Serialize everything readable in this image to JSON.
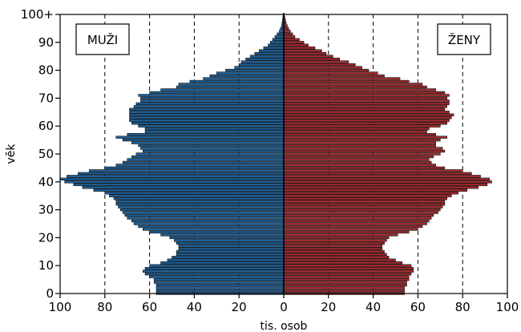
{
  "chart_data": {
    "type": "bar",
    "orientation": "horizontal",
    "subtype": "population-pyramid",
    "title": "",
    "xlabel": "tis. osob",
    "ylabel": "věk",
    "xlim": [
      -100,
      100
    ],
    "ylim": [
      0,
      100
    ],
    "x_ticks": [
      100,
      80,
      60,
      40,
      20,
      0,
      20,
      40,
      60,
      80,
      100
    ],
    "y_ticks": [
      {
        "value": 0,
        "label": "0"
      },
      {
        "value": 10,
        "label": "10"
      },
      {
        "value": 20,
        "label": "20"
      },
      {
        "value": 30,
        "label": "30"
      },
      {
        "value": 40,
        "label": "40"
      },
      {
        "value": 50,
        "label": "50"
      },
      {
        "value": 60,
        "label": "60"
      },
      {
        "value": 70,
        "label": "70"
      },
      {
        "value": 80,
        "label": "80"
      },
      {
        "value": 90,
        "label": "90"
      },
      {
        "value": 100,
        "label": "100+"
      }
    ],
    "grid": "vertical dashed",
    "colors": {
      "male": "#1f5e94",
      "female": "#9c2a2f"
    },
    "panel_labels": {
      "male": "MUŽI",
      "female": "ŽENY"
    },
    "ages": [
      0,
      1,
      2,
      3,
      4,
      5,
      6,
      7,
      8,
      9,
      10,
      11,
      12,
      13,
      14,
      15,
      16,
      17,
      18,
      19,
      20,
      21,
      22,
      23,
      24,
      25,
      26,
      27,
      28,
      29,
      30,
      31,
      32,
      33,
      34,
      35,
      36,
      37,
      38,
      39,
      40,
      41,
      42,
      43,
      44,
      45,
      46,
      47,
      48,
      49,
      50,
      51,
      52,
      53,
      54,
      55,
      56,
      57,
      58,
      59,
      60,
      61,
      62,
      63,
      64,
      65,
      66,
      67,
      68,
      69,
      70,
      71,
      72,
      73,
      74,
      75,
      76,
      77,
      78,
      79,
      80,
      81,
      82,
      83,
      84,
      85,
      86,
      87,
      88,
      89,
      90,
      91,
      92,
      93,
      94,
      95,
      96,
      97,
      98,
      99,
      100
    ],
    "series": [
      {
        "name": "MUŽI",
        "values": [
          57,
          57,
          57,
          57,
          58,
          58,
          60,
          62,
          63,
          62,
          60,
          55,
          52,
          50,
          48,
          48,
          47,
          47,
          48,
          49,
          51,
          55,
          60,
          63,
          65,
          67,
          68,
          70,
          71,
          72,
          73,
          74,
          75,
          75,
          76,
          78,
          80,
          85,
          90,
          94,
          98,
          100,
          97,
          92,
          87,
          80,
          75,
          72,
          70,
          68,
          66,
          63,
          64,
          65,
          68,
          72,
          75,
          70,
          62,
          62,
          65,
          68,
          69,
          69,
          69,
          69,
          69,
          67,
          66,
          64,
          64,
          65,
          60,
          55,
          48,
          47,
          42,
          36,
          33,
          30,
          26,
          22,
          20,
          19,
          17,
          15,
          13,
          11,
          9,
          7,
          6,
          5,
          4,
          3,
          2,
          1.5,
          1,
          0.8,
          0.6,
          0.4,
          0.3
        ]
      },
      {
        "name": "ŽENY",
        "values": [
          54,
          54,
          54,
          55,
          55,
          56,
          56,
          57,
          58,
          58,
          57,
          53,
          50,
          47,
          46,
          45,
          44,
          44,
          45,
          46,
          47,
          51,
          56,
          60,
          62,
          64,
          65,
          66,
          67,
          69,
          70,
          71,
          72,
          72,
          73,
          75,
          78,
          82,
          87,
          91,
          93,
          92,
          88,
          84,
          80,
          72,
          68,
          66,
          65,
          67,
          70,
          72,
          71,
          68,
          68,
          70,
          73,
          68,
          64,
          65,
          70,
          73,
          74,
          75,
          76,
          74,
          72,
          73,
          74,
          74,
          73,
          74,
          72,
          68,
          64,
          62,
          56,
          52,
          45,
          42,
          38,
          35,
          32,
          29,
          25,
          22,
          19,
          17,
          14,
          11,
          9,
          7,
          5,
          4,
          3,
          2.2,
          1.6,
          1.1,
          0.8,
          0.5,
          0.3
        ]
      }
    ]
  }
}
